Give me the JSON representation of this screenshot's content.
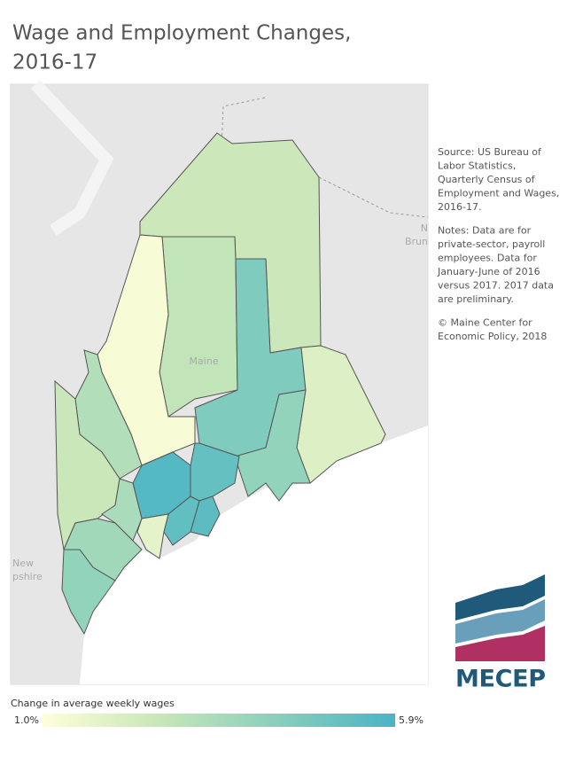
{
  "title_lines": [
    "Wage and Employment Changes,",
    "2016-17"
  ],
  "notes": [
    [
      "Source: US Bureau of",
      "Labor Statistics,",
      "Quarterly Census of",
      "Employment and Wages,",
      "2016-17."
    ],
    [
      "Notes: Data are for",
      "private-sector, payroll",
      "employees. Data for",
      "January-June of 2016",
      "versus 2017. 2017 data",
      "are preliminary."
    ],
    [
      "© Maine Center for",
      "Economic Policy, 2018"
    ]
  ],
  "map_labels": [
    "Maine",
    "N",
    "Brun",
    "New",
    "pshire"
  ],
  "legend": {
    "title": "Change in average weekly wages",
    "min": {
      "value": 1.0,
      "label": "1.0%"
    },
    "max": {
      "value": 5.9,
      "label": "5.9%"
    },
    "colors": [
      "#ffffda",
      "#c8e6b8",
      "#88cfbc",
      "#4ab4c4"
    ]
  },
  "region_values": [
    2.5,
    2.8,
    1.2,
    4.5,
    2.0,
    4.0,
    3.2,
    2.6,
    5.6,
    5.2,
    3.4,
    5.4,
    5.3,
    1.8,
    3.6,
    4.0
  ],
  "logo": "MECEP"
}
